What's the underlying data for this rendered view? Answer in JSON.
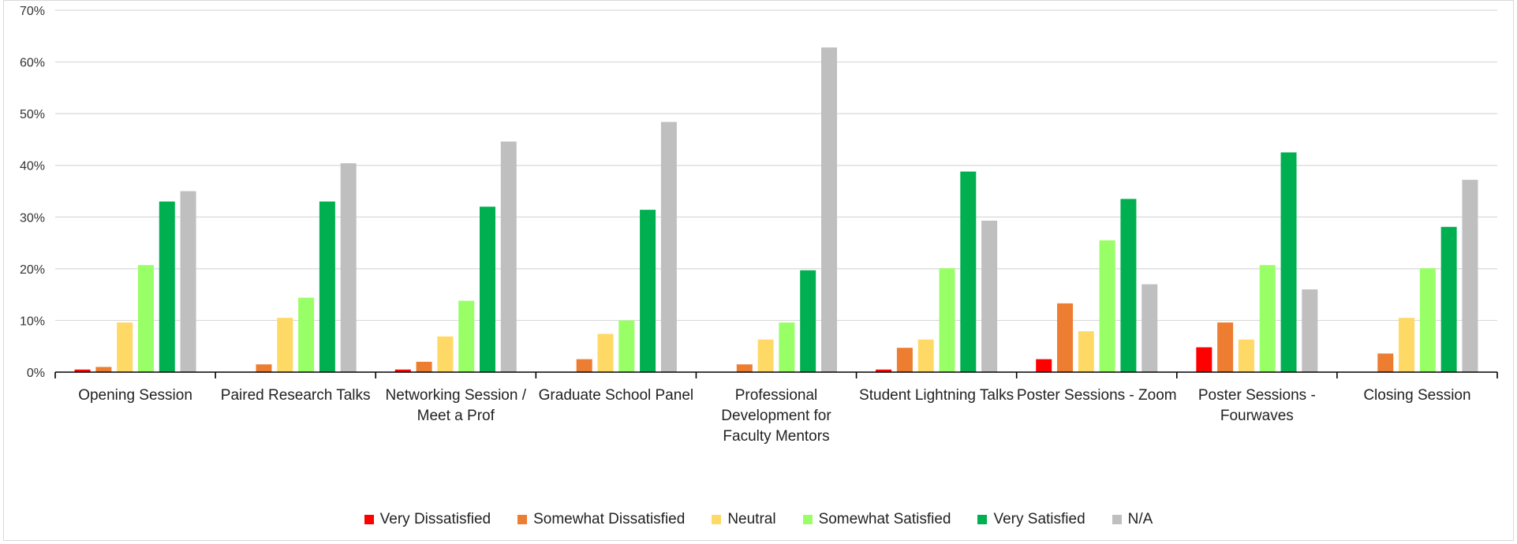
{
  "chart_data": {
    "type": "bar",
    "title": "",
    "xlabel": "",
    "ylabel": "",
    "ylim": [
      0,
      70
    ],
    "yticks": [
      0,
      10,
      20,
      30,
      40,
      50,
      60,
      70
    ],
    "ytick_labels": [
      "0%",
      "10%",
      "20%",
      "30%",
      "40%",
      "50%",
      "60%",
      "70%"
    ],
    "grid": true,
    "legend_position": "bottom",
    "categories": [
      [
        "Opening Session"
      ],
      [
        "Paired Research Talks"
      ],
      [
        "Networking Session /",
        "Meet a Prof"
      ],
      [
        "Graduate School Panel"
      ],
      [
        "Professional",
        "Development for",
        "Faculty Mentors"
      ],
      [
        "Student Lightning Talks"
      ],
      [
        "Poster Sessions - Zoom"
      ],
      [
        "Poster Sessions -",
        "Fourwaves"
      ],
      [
        "Closing Session"
      ]
    ],
    "series": [
      {
        "name": "Very Dissatisfied",
        "color": "#ff0000",
        "values": [
          0.5,
          0,
          0.5,
          0,
          0,
          0.5,
          2.5,
          4.8,
          0
        ]
      },
      {
        "name": "Somewhat Dissatisfied",
        "color": "#ed7d31",
        "values": [
          1.0,
          1.5,
          2.0,
          2.5,
          1.5,
          4.7,
          13.3,
          9.6,
          3.6
        ]
      },
      {
        "name": "Neutral",
        "color": "#ffd966",
        "values": [
          9.6,
          10.5,
          6.9,
          7.4,
          6.3,
          6.3,
          7.9,
          6.3,
          10.5
        ]
      },
      {
        "name": "Somewhat Satisfied",
        "color": "#99ff66",
        "values": [
          20.7,
          14.4,
          13.8,
          10.0,
          9.6,
          20.1,
          25.5,
          20.7,
          20.1
        ]
      },
      {
        "name": "Very Satisfied",
        "color": "#00b050",
        "values": [
          33.0,
          33.0,
          32.0,
          31.4,
          19.7,
          38.8,
          33.5,
          42.5,
          28.1
        ]
      },
      {
        "name": "N/A",
        "color": "#bfbfbf",
        "values": [
          35.0,
          40.4,
          44.6,
          48.4,
          62.8,
          29.3,
          17.0,
          16.0,
          37.2
        ]
      }
    ]
  }
}
